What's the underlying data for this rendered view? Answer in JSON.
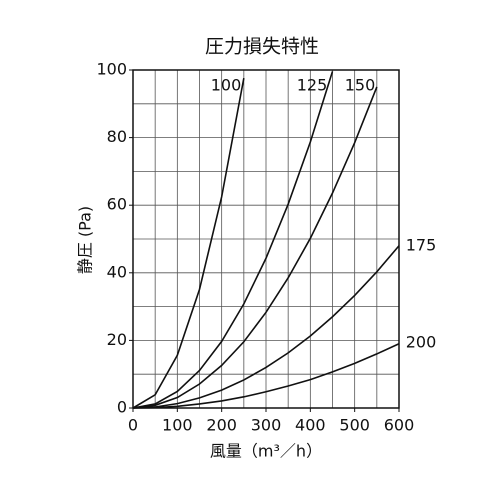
{
  "chart_data": {
    "type": "line",
    "title": "圧力損失特性",
    "ylabel": "静圧 (Pa)",
    "xlabel": "風量（m³／h）",
    "xlim": [
      0,
      600
    ],
    "ylim": [
      0,
      100
    ],
    "xticks": [
      0,
      100,
      200,
      300,
      400,
      500,
      600
    ],
    "yticks": [
      0,
      20,
      40,
      60,
      80,
      100
    ],
    "x_grid": [
      50,
      100,
      150,
      200,
      250,
      300,
      350,
      400,
      450,
      500,
      550
    ],
    "y_grid": [
      10,
      20,
      30,
      40,
      50,
      60,
      70,
      80,
      90
    ],
    "grid": true,
    "series": [
      {
        "name": "100",
        "color": "#111111",
        "x": [
          0,
          50,
          100,
          150,
          200,
          250
        ],
        "values": [
          0,
          3.9,
          15.6,
          35.1,
          62.5,
          97.6
        ]
      },
      {
        "name": "125",
        "color": "#111111",
        "x": [
          0,
          50,
          100,
          150,
          200,
          250,
          300,
          350,
          400,
          450
        ],
        "values": [
          0,
          1.2,
          4.9,
          11.1,
          19.7,
          30.8,
          44.3,
          60.3,
          78.7,
          99.6
        ]
      },
      {
        "name": "150",
        "color": "#111111",
        "x": [
          0,
          50,
          100,
          150,
          200,
          250,
          300,
          350,
          400,
          450,
          500,
          550
        ],
        "values": [
          0,
          0.8,
          3.1,
          7.1,
          12.6,
          19.6,
          28.3,
          38.5,
          50.2,
          63.6,
          78.5,
          95.0
        ]
      },
      {
        "name": "175",
        "color": "#111111",
        "x": [
          0,
          50,
          100,
          150,
          200,
          250,
          300,
          350,
          400,
          450,
          500,
          550,
          600
        ],
        "values": [
          0,
          0.3,
          1.3,
          3.0,
          5.3,
          8.3,
          12,
          16.3,
          21.3,
          27,
          33.3,
          40.3,
          48
        ]
      },
      {
        "name": "200",
        "color": "#111111",
        "x": [
          0,
          50,
          100,
          150,
          200,
          250,
          300,
          350,
          400,
          450,
          500,
          550,
          600
        ],
        "values": [
          0,
          0.1,
          0.5,
          1.2,
          2.1,
          3.3,
          4.8,
          6.5,
          8.4,
          10.7,
          13.2,
          16,
          19
        ]
      }
    ]
  }
}
